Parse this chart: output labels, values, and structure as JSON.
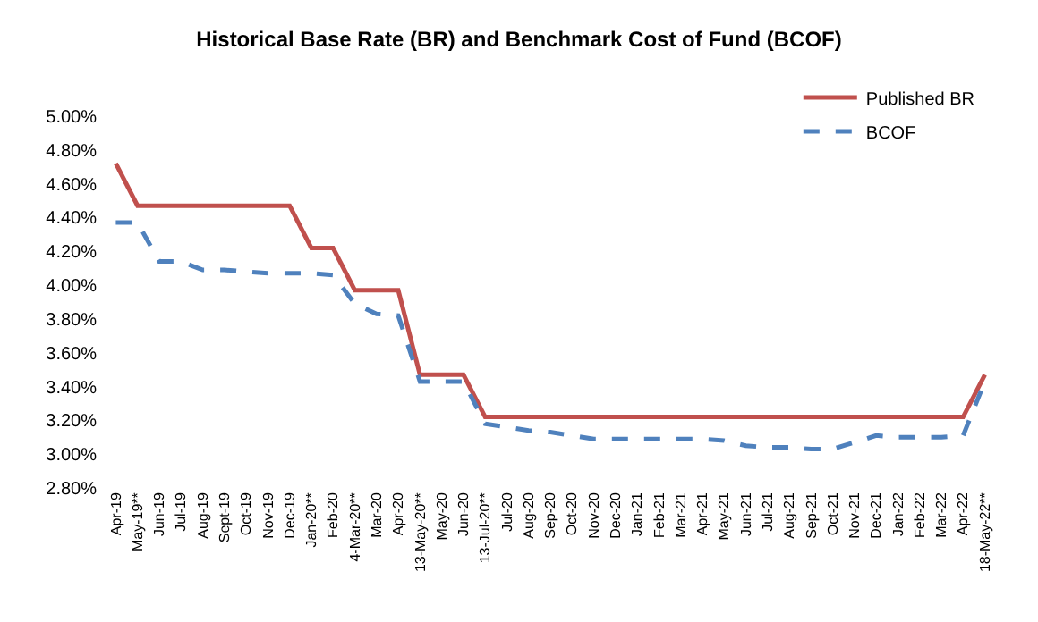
{
  "chart_data": {
    "type": "line",
    "title": "Historical Base Rate (BR) and Benchmark Cost of Fund (BCOF)",
    "categories": [
      "Apr-19",
      "May-19**",
      "Jun-19",
      "Jul-19",
      "Aug-19",
      "Sept-19",
      "Oct-19",
      "Nov-19",
      "Dec-19",
      "Jan-20**",
      "Feb-20",
      "4-Mar-20**",
      "Mar-20",
      "Apr-20",
      "13-May-20**",
      "May-20",
      "Jun-20",
      "13-Jul-20**",
      "Jul-20",
      "Aug-20",
      "Sep-20",
      "Oct-20",
      "Nov-20",
      "Dec-20",
      "Jan-21",
      "Feb-21",
      "Mar-21",
      "Apr-21",
      "May-21",
      "Jun-21",
      "Jul-21",
      "Aug-21",
      "Sep-21",
      "Oct-21",
      "Nov-21",
      "Dec-21",
      "Jan-22",
      "Feb-22",
      "Mar-22",
      "Apr-22",
      "18-May-22**"
    ],
    "series": [
      {
        "name": "Published BR",
        "color": "#c0504d",
        "line_style": "solid",
        "values": [
          4.72,
          4.47,
          4.47,
          4.47,
          4.47,
          4.47,
          4.47,
          4.47,
          4.47,
          4.22,
          4.22,
          3.97,
          3.97,
          3.97,
          3.47,
          3.47,
          3.47,
          3.22,
          3.22,
          3.22,
          3.22,
          3.22,
          3.22,
          3.22,
          3.22,
          3.22,
          3.22,
          3.22,
          3.22,
          3.22,
          3.22,
          3.22,
          3.22,
          3.22,
          3.22,
          3.22,
          3.22,
          3.22,
          3.22,
          3.22,
          3.47
        ]
      },
      {
        "name": "BCOF",
        "color": "#4f81bd",
        "line_style": "dashed",
        "values": [
          4.37,
          4.37,
          4.14,
          4.14,
          4.09,
          4.09,
          4.08,
          4.07,
          4.07,
          4.07,
          4.06,
          3.89,
          3.83,
          3.82,
          3.43,
          3.43,
          3.43,
          3.18,
          3.16,
          3.14,
          3.13,
          3.11,
          3.09,
          3.09,
          3.09,
          3.09,
          3.09,
          3.09,
          3.08,
          3.05,
          3.04,
          3.04,
          3.03,
          3.03,
          3.07,
          3.11,
          3.1,
          3.1,
          3.1,
          3.11,
          3.43
        ]
      }
    ],
    "ylim": [
      2.8,
      5.0
    ],
    "yticks": [
      {
        "value": 2.8,
        "label": "2.80%"
      },
      {
        "value": 3.0,
        "label": "3.00%"
      },
      {
        "value": 3.2,
        "label": "3.20%"
      },
      {
        "value": 3.4,
        "label": "3.40%"
      },
      {
        "value": 3.6,
        "label": "3.60%"
      },
      {
        "value": 3.8,
        "label": "3.80%"
      },
      {
        "value": 4.0,
        "label": "4.00%"
      },
      {
        "value": 4.2,
        "label": "4.20%"
      },
      {
        "value": 4.4,
        "label": "4.40%"
      },
      {
        "value": 4.6,
        "label": "4.60%"
      },
      {
        "value": 4.8,
        "label": "4.80%"
      },
      {
        "value": 5.0,
        "label": "5.00%"
      }
    ],
    "legend": "top right",
    "marker": "none"
  }
}
